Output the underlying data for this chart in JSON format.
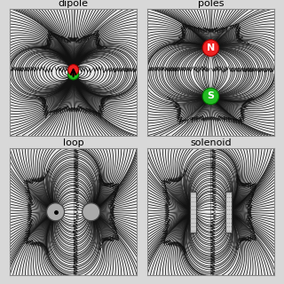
{
  "titles": [
    "dipole",
    "poles",
    "loop",
    "solenoid"
  ],
  "bg_color": "#d8d8d8",
  "panel_bg": "#e8e8e8",
  "stream_color": "#111111",
  "axis_line_color": "#999999",
  "density": 1.4,
  "arrowsize": 0.7
}
